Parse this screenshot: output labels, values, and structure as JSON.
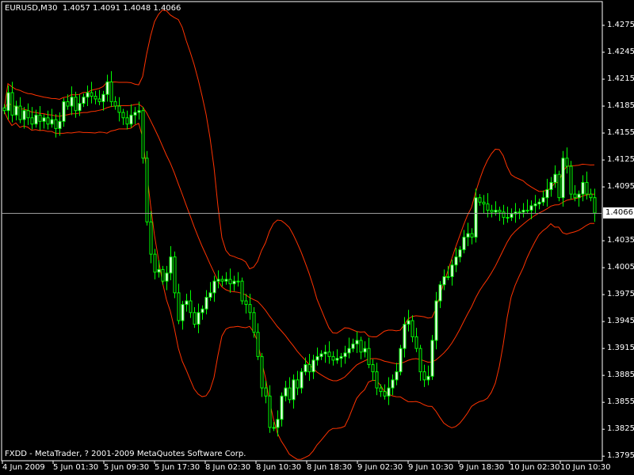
{
  "header": {
    "symbol": "EURUSD,M30",
    "open": "1.4057",
    "high": "1.4091",
    "low": "1.4048",
    "close": "1.4066"
  },
  "footer": {
    "text": "FXDD - MetaTrader, ? 2001-2009 MetaQuotes Software Corp."
  },
  "colors": {
    "background": "#000000",
    "candle_outline": "#00FF00",
    "bull_fill": "#FFFFFF",
    "bear_fill": "#000000",
    "bands": "#FF3300",
    "price_line": "#9A9A9A",
    "axis": "#FFFFFF"
  },
  "chart_data": {
    "type": "candlestick",
    "symbol": "EURUSD",
    "timeframe": "M30",
    "ylim": [
      1.3795,
      1.429
    ],
    "y_ticks": [
      "1.4275",
      "1.4245",
      "1.4215",
      "1.4185",
      "1.4155",
      "1.4125",
      "1.4095",
      "1.4066",
      "1.4035",
      "1.4005",
      "1.3975",
      "1.3945",
      "1.3915",
      "1.3885",
      "1.3855",
      "1.3825",
      "1.3795"
    ],
    "x_ticks": [
      "4 Jun 2009",
      "5 Jun 01:30",
      "5 Jun 09:30",
      "5 Jun 17:30",
      "8 Jun 02:30",
      "8 Jun 10:30",
      "8 Jun 18:30",
      "9 Jun 02:30",
      "9 Jun 10:30",
      "9 Jun 18:30",
      "10 Jun 02:30",
      "10 Jun 10:30"
    ],
    "current_price": "1.4066",
    "indicators": [
      {
        "type": "bollinger",
        "period": 20,
        "deviations": 2
      }
    ],
    "closes": [
      1.418,
      1.42,
      1.4175,
      1.4185,
      1.417,
      1.418,
      1.4172,
      1.4165,
      1.4175,
      1.4168,
      1.4172,
      1.4165,
      1.417,
      1.416,
      1.4168,
      1.419,
      1.4185,
      1.4195,
      1.418,
      1.4188,
      1.4195,
      1.42,
      1.4196,
      1.4193,
      1.419,
      1.4198,
      1.4212,
      1.419,
      1.4185,
      1.4178,
      1.4172,
      1.4165,
      1.4175,
      1.4178,
      1.418,
      1.4127,
      1.4056,
      1.402,
      1.4,
      1.4003,
      1.399,
      1.3999,
      1.4017,
      1.3977,
      1.3946,
      1.3964,
      1.3968,
      1.3955,
      1.3942,
      1.3955,
      1.3959,
      1.3972,
      1.3977,
      1.399,
      1.3992,
      1.399,
      1.3992,
      1.3987,
      1.399,
      1.399,
      1.3968,
      1.3964,
      1.3955,
      1.3933,
      1.3906,
      1.3871,
      1.3862,
      1.3827,
      1.3827,
      1.3836,
      1.3862,
      1.3871,
      1.3858,
      1.388,
      1.3871,
      1.3889,
      1.3897,
      1.3889,
      1.3902,
      1.3906,
      1.3909,
      1.3911,
      1.3906,
      1.3902,
      1.3904,
      1.3906,
      1.391,
      1.3915,
      1.392,
      1.3924,
      1.3911,
      1.3915,
      1.3897,
      1.3889,
      1.3871,
      1.3867,
      1.3862,
      1.3871,
      1.388,
      1.3889,
      1.3915,
      1.3942,
      1.3946,
      1.3928,
      1.3915,
      1.3889,
      1.388,
      1.3884,
      1.3924,
      1.3968,
      1.3986,
      1.3995,
      1.3995,
      1.4008,
      1.4017,
      1.4025,
      1.4039,
      1.4043,
      1.4039,
      1.4083,
      1.4078,
      1.4076,
      1.4069,
      1.4067,
      1.4069,
      1.4067,
      1.4061,
      1.4061,
      1.4065,
      1.4067,
      1.4067,
      1.4069,
      1.4069,
      1.4074,
      1.4076,
      1.4078,
      1.4083,
      1.4092,
      1.41,
      1.4109,
      1.4083,
      1.4127,
      1.4118,
      1.4087,
      1.4083,
      1.4087,
      1.41,
      1.4087,
      1.4083,
      1.4066
    ]
  }
}
